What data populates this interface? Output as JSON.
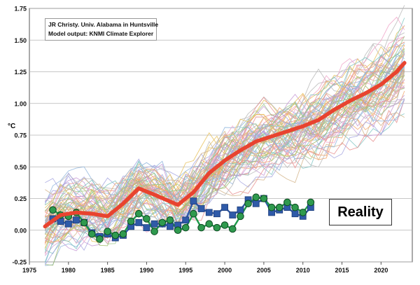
{
  "credit": {
    "line1": "JR Christy. Univ. Alabama in Huntsville",
    "line2": "Model output: KNMI Climate Explorer"
  },
  "annotation": "Reality",
  "chart_data": {
    "type": "line",
    "ylabel": "°C",
    "xlim": [
      1975,
      2024
    ],
    "ylim": [
      -0.25,
      1.75
    ],
    "grid": true,
    "x_ticks": [
      1975,
      1980,
      1985,
      1990,
      1995,
      2000,
      2005,
      2010,
      2015,
      2020
    ],
    "y_ticks": [
      -0.25,
      0.0,
      0.25,
      0.5,
      0.75,
      1.0,
      1.25,
      1.5,
      1.75
    ],
    "model_mean": {
      "color": "#e8432f",
      "x": [
        1977,
        1979,
        1981,
        1983,
        1985,
        1987,
        1989,
        1991,
        1994,
        1996,
        1998,
        2000,
        2002,
        2004,
        2006,
        2008,
        2010,
        2012,
        2014,
        2016,
        2018,
        2020,
        2022,
        2023
      ],
      "y": [
        0.03,
        0.12,
        0.14,
        0.13,
        0.11,
        0.21,
        0.33,
        0.28,
        0.2,
        0.3,
        0.45,
        0.55,
        0.63,
        0.7,
        0.74,
        0.78,
        0.82,
        0.87,
        0.95,
        1.02,
        1.08,
        1.15,
        1.25,
        1.32
      ]
    },
    "observations": [
      {
        "marker": "square",
        "color": "#2f5aa8",
        "x": [
          1978,
          1979,
          1980,
          1981,
          1982,
          1983,
          1984,
          1985,
          1986,
          1987,
          1988,
          1989,
          1990,
          1991,
          1992,
          1993,
          1994,
          1995,
          1996,
          1997,
          1998,
          1999,
          2000,
          2001,
          2002,
          2003,
          2004,
          2005,
          2006,
          2007,
          2008,
          2009,
          2010,
          2011
        ],
        "y": [
          0.09,
          0.07,
          0.05,
          0.08,
          0.06,
          -0.02,
          -0.05,
          -0.03,
          -0.06,
          -0.04,
          0.03,
          0.06,
          0.02,
          0.05,
          0.05,
          0.03,
          0.04,
          0.08,
          0.23,
          0.17,
          0.14,
          0.13,
          0.18,
          0.12,
          0.16,
          0.24,
          0.21,
          0.25,
          0.14,
          0.16,
          0.18,
          0.13,
          0.11,
          0.18
        ]
      },
      {
        "marker": "circle",
        "color": "#1e9a4a",
        "x": [
          1978,
          1979,
          1980,
          1981,
          1982,
          1983,
          1984,
          1985,
          1986,
          1987,
          1988,
          1989,
          1990,
          1991,
          1992,
          1993,
          1994,
          1995,
          1996,
          1997,
          1998,
          1999,
          2000,
          2001,
          2002,
          2003,
          2004,
          2005,
          2006,
          2007,
          2008,
          2009,
          2010,
          2011
        ],
        "y": [
          0.16,
          0.12,
          0.11,
          0.14,
          0.06,
          -0.03,
          -0.07,
          -0.01,
          -0.04,
          -0.03,
          0.07,
          0.13,
          0.09,
          -0.01,
          0.06,
          0.08,
          0.0,
          0.02,
          0.13,
          0.02,
          0.05,
          0.02,
          0.04,
          0.01,
          0.11,
          0.21,
          0.26,
          0.25,
          0.18,
          0.18,
          0.22,
          0.18,
          0.14,
          0.22
        ]
      }
    ]
  }
}
